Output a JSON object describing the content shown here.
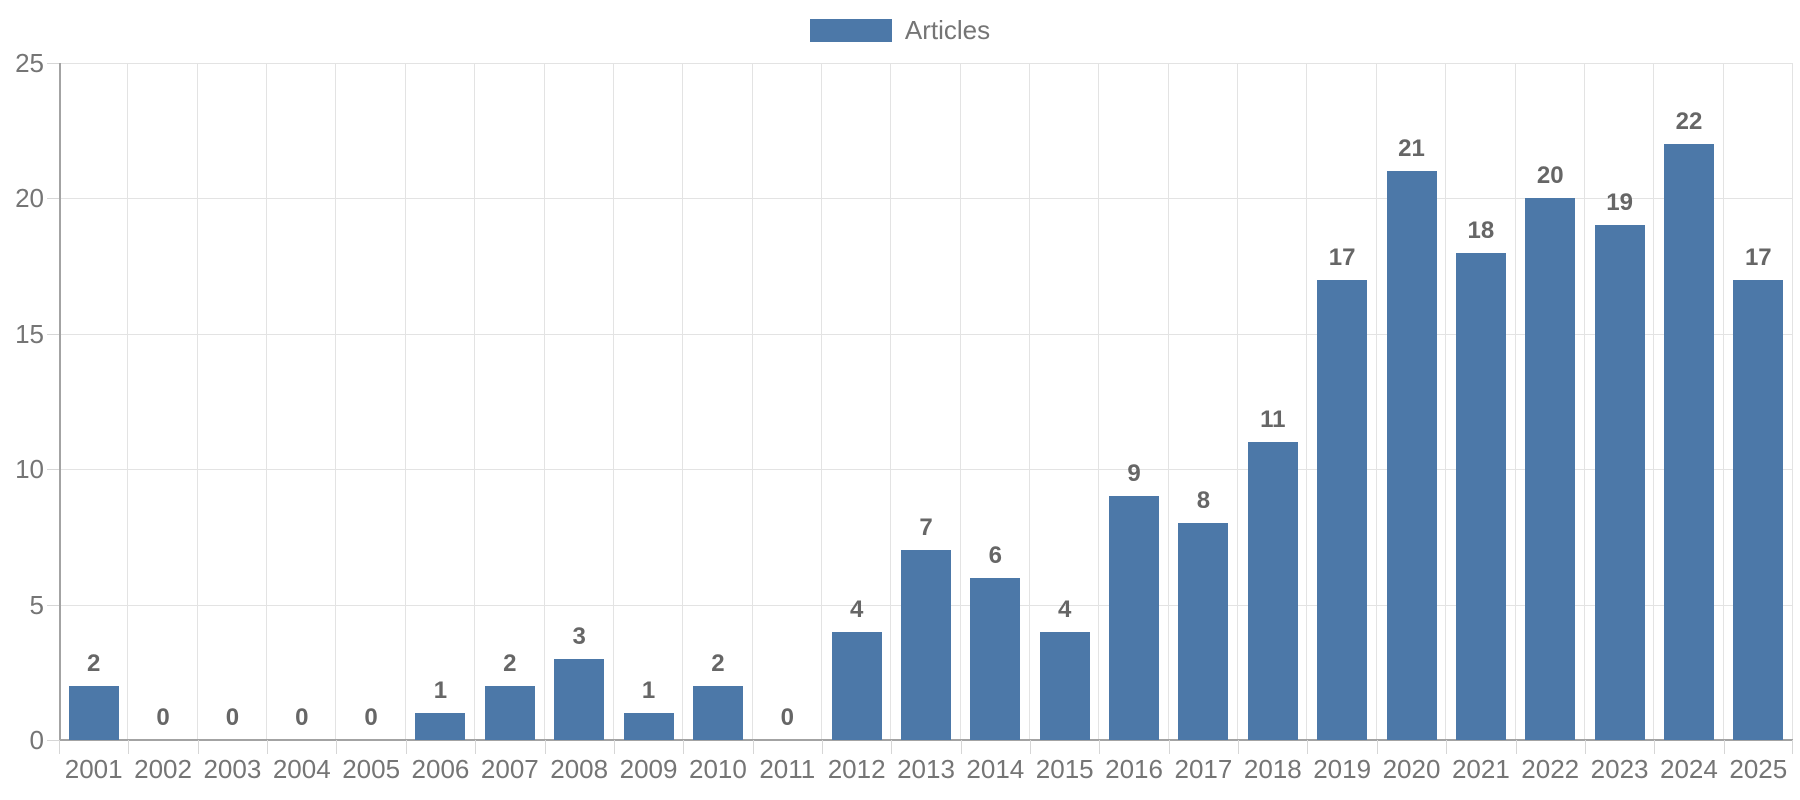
{
  "chart_data": {
    "type": "bar",
    "title": "",
    "categories": [
      "2001",
      "2002",
      "2003",
      "2004",
      "2005",
      "2006",
      "2007",
      "2008",
      "2009",
      "2010",
      "2011",
      "2012",
      "2013",
      "2014",
      "2015",
      "2016",
      "2017",
      "2018",
      "2019",
      "2020",
      "2021",
      "2022",
      "2023",
      "2024",
      "2025"
    ],
    "series": [
      {
        "name": "Articles",
        "values": [
          2,
          0,
          0,
          0,
          0,
          1,
          2,
          3,
          1,
          2,
          0,
          4,
          7,
          6,
          4,
          9,
          8,
          11,
          17,
          21,
          18,
          20,
          19,
          22,
          17
        ],
        "color": "#4c78a8"
      }
    ],
    "xlabel": "",
    "ylabel": "",
    "ylim": [
      0,
      25
    ],
    "yticks": [
      0,
      5,
      10,
      15,
      20,
      25
    ],
    "grid": true,
    "data_labels": true,
    "legend_position": "top-center"
  },
  "legend": {
    "label": "Articles"
  },
  "colors": {
    "bar": "#4c78a8",
    "grid_line": "#e3e3e3",
    "axis_line": "#a3a3a3",
    "tick_mark": "#d6d6d6",
    "axis_label_text": "#757575",
    "data_label_text": "#666666",
    "legend_text": "#757575",
    "background": "#ffffff"
  }
}
